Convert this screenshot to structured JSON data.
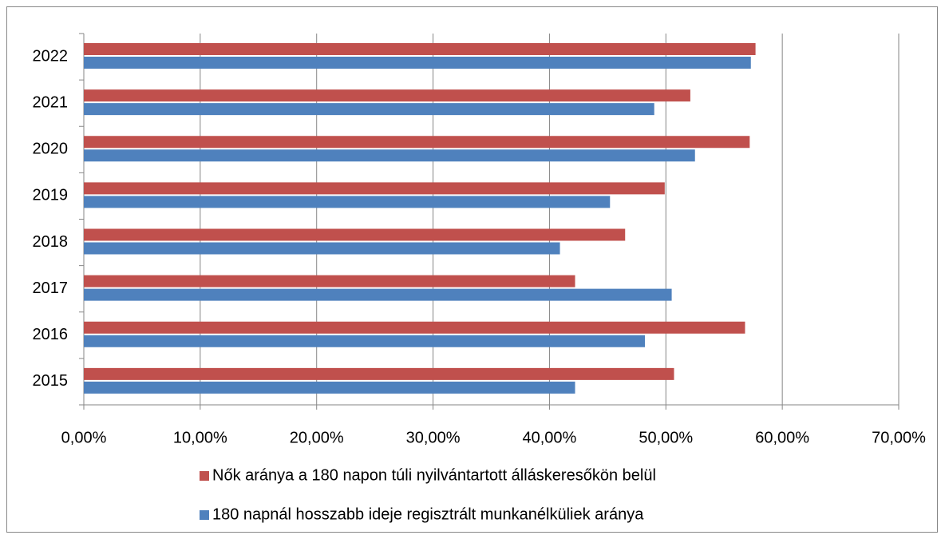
{
  "chart_data": {
    "type": "hbar",
    "categories": [
      "2015",
      "2016",
      "2017",
      "2018",
      "2019",
      "2020",
      "2021",
      "2022"
    ],
    "series": [
      {
        "name": "Nők aránya a 180 napon túli nyilvántartott álláskeresőkön belül",
        "color": "#c0504d",
        "values": [
          50.7,
          56.8,
          42.2,
          46.5,
          49.9,
          57.2,
          52.1,
          57.7
        ]
      },
      {
        "name": "180 napnál hosszabb ideje regisztrált munkanélküliek aránya",
        "color": "#4f81bd",
        "values": [
          42.2,
          48.2,
          50.5,
          40.9,
          45.2,
          52.5,
          49.0,
          57.3
        ]
      }
    ],
    "xlim": [
      0,
      70
    ],
    "xticks": [
      {
        "value": 0,
        "label": "0,00%"
      },
      {
        "value": 10,
        "label": "10,00%"
      },
      {
        "value": 20,
        "label": "20,00%"
      },
      {
        "value": 30,
        "label": "30,00%"
      },
      {
        "value": 40,
        "label": "40,00%"
      },
      {
        "value": 50,
        "label": "50,00%"
      },
      {
        "value": 60,
        "label": "60,00%"
      },
      {
        "value": 70,
        "label": "70,00%"
      }
    ],
    "grid": true,
    "legend": "bottom"
  }
}
